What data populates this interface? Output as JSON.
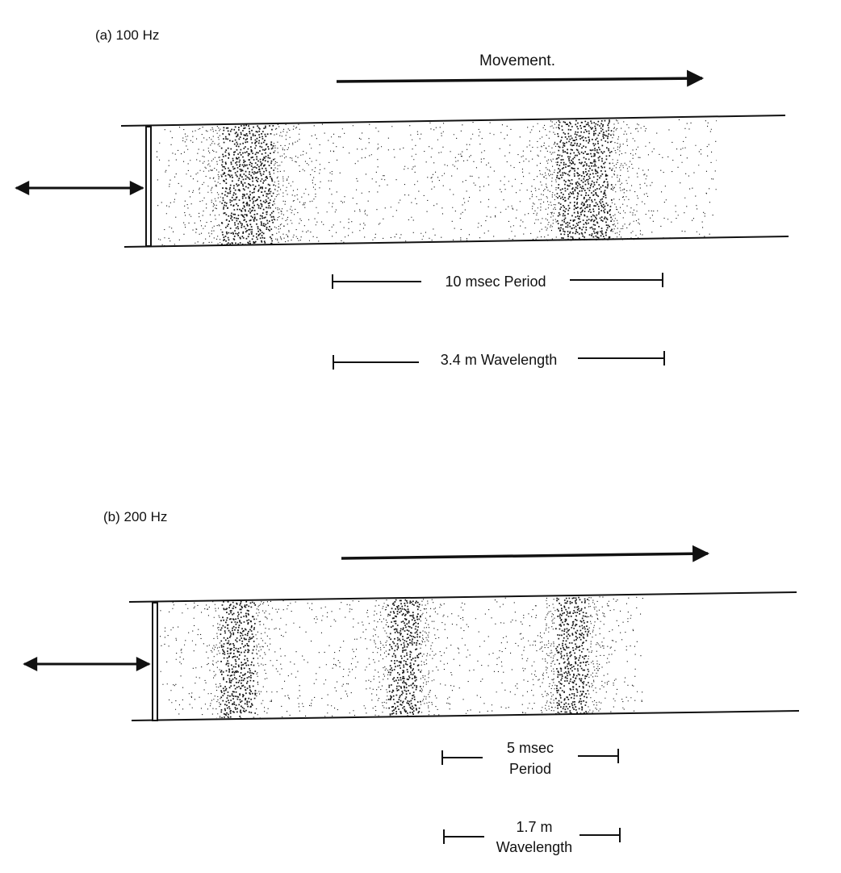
{
  "figure": {
    "panels": [
      {
        "id": "a",
        "title": "(a) 100 Hz",
        "frequency_hz": 100,
        "movement_label": "Movement.",
        "period_label": "10 msec Period",
        "wavelength_label": "3.4 m Wavelength"
      },
      {
        "id": "b",
        "title": "(b) 200 Hz",
        "frequency_hz": 200,
        "movement_label": "",
        "period_label_line1": "5 msec",
        "period_label_line2": "Period",
        "wavelength_label_line1": "1.7 m",
        "wavelength_label_line2": "Wavelength"
      }
    ],
    "colors": {
      "ink": "#111111",
      "paper": "#ffffff"
    }
  }
}
